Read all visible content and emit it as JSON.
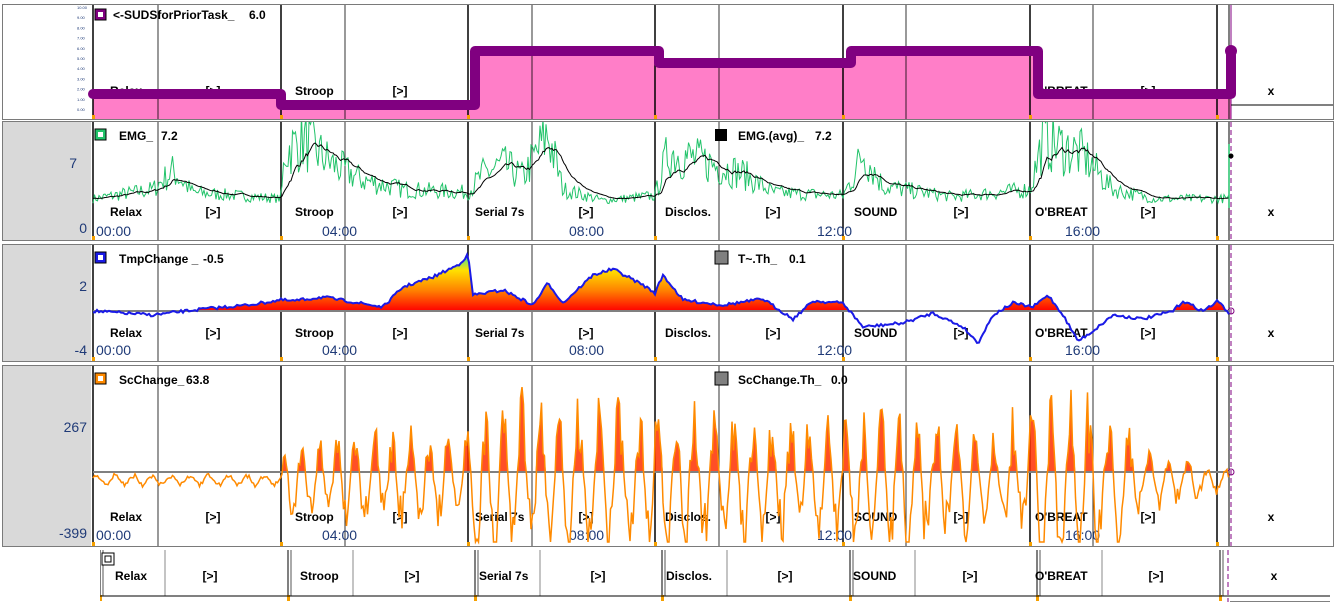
{
  "segments": [
    "Relax",
    "[>]",
    "Stroop",
    "[>]",
    "Serial 7s",
    "[>]",
    "Disclos.",
    "[>]",
    "SOUND",
    "[>]",
    "O'BREAT",
    "[>]",
    "x"
  ],
  "time_ticks": [
    "00:00",
    "04:00",
    "08:00",
    "12:00",
    "16:00"
  ],
  "tiny_ticks": [
    "10.00",
    "9.00",
    "8.00",
    "7.00",
    "6.00",
    "5.00",
    "4.00",
    "3.00",
    "2.00",
    "1.00",
    "0.00"
  ],
  "panels": {
    "suds": {
      "label": "<-SUDSforPriorTask_",
      "value": "6.0",
      "color": "#800080",
      "fill": "#ff7ec8"
    },
    "emg": {
      "label": "EMG_",
      "value": "7.2",
      "label2": "EMG.(avg)_",
      "value2": "7.2",
      "ymax": "7",
      "ymin": "0",
      "color": "#22c36a",
      "color2": "#000000"
    },
    "tmp": {
      "label": "TmpChange _",
      "value": "-0.5",
      "label2": "T~.Th_",
      "value2": "0.1",
      "ymax": "2",
      "ymin": "-4",
      "color": "#1a1ae6"
    },
    "sc": {
      "label": "ScChange_",
      "value": "63.8",
      "label2": "ScChange.Th_",
      "value2": "0.0",
      "ymax": "267",
      "ymin": "-399",
      "color": "#ff8a00"
    }
  },
  "colors": {
    "grid": "#000000",
    "marker": "#f5a000",
    "cursor": "#800080"
  }
}
